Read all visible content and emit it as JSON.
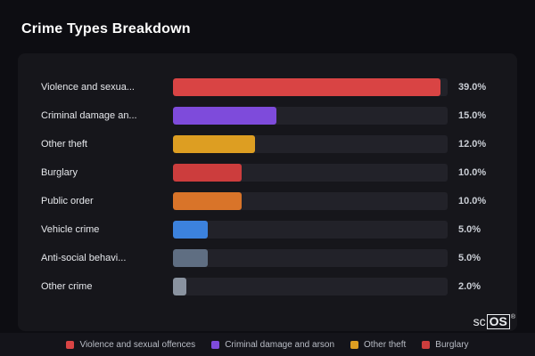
{
  "page": {
    "title": "Crime Types Breakdown"
  },
  "chart_data": {
    "type": "bar",
    "orientation": "horizontal",
    "title": "Crime Types Breakdown",
    "categories": [
      "Violence and sexua...",
      "Criminal damage an...",
      "Other theft",
      "Burglary",
      "Public order",
      "Vehicle crime",
      "Anti-social behavi...",
      "Other crime"
    ],
    "values": [
      39.0,
      15.0,
      12.0,
      10.0,
      10.0,
      5.0,
      5.0,
      2.0
    ],
    "value_labels": [
      "39.0%",
      "15.0%",
      "12.0%",
      "10.0%",
      "10.0%",
      "5.0%",
      "5.0%",
      "2.0%"
    ],
    "colors": [
      "#d94444",
      "#7e4bdb",
      "#dd9e22",
      "#cc3d3d",
      "#d97429",
      "#3c82dd",
      "#5f6e82",
      "#8a93a0"
    ],
    "xlim": [
      0,
      40
    ],
    "grid": false,
    "track_color": "#222229",
    "legend_position": "bottom"
  },
  "legend": {
    "items": [
      {
        "label": "Violence and sexual offences",
        "color": "#d94444"
      },
      {
        "label": "Criminal damage and arson",
        "color": "#7e4bdb"
      },
      {
        "label": "Other theft",
        "color": "#dd9e22"
      },
      {
        "label": "Burglary",
        "color": "#cc3d3d"
      }
    ]
  },
  "watermark": {
    "prefix": "sc",
    "boxed": "OS",
    "reg": "®"
  }
}
